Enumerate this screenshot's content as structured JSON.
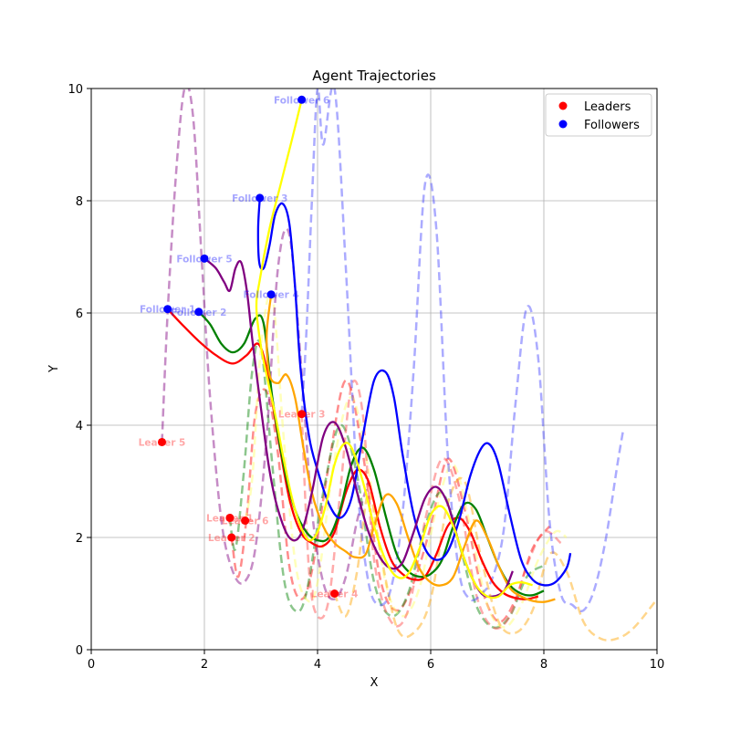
{
  "chart_data": {
    "type": "line",
    "title": "Agent Trajectories",
    "xlabel": "X",
    "ylabel": "Y",
    "xlim": [
      0,
      10
    ],
    "ylim": [
      0,
      10
    ],
    "xticks": [
      0,
      2,
      4,
      6,
      8,
      10
    ],
    "yticks": [
      0,
      2,
      4,
      6,
      8,
      10
    ],
    "grid": true,
    "legend": {
      "placement": "top-right",
      "entries": [
        {
          "label": "Leaders",
          "color": "#ff0000"
        },
        {
          "label": "Followers",
          "color": "#0000ff"
        }
      ]
    },
    "leaders": [
      {
        "label": "Leader 5",
        "x": 1.25,
        "y": 3.7
      },
      {
        "label": "Leader 2",
        "x": 2.48,
        "y": 2.0
      },
      {
        "label": "Leader 1",
        "x": 2.45,
        "y": 2.35
      },
      {
        "label": "Leader 6",
        "x": 2.72,
        "y": 2.3
      },
      {
        "label": "Leader 3",
        "x": 3.72,
        "y": 4.2
      },
      {
        "label": "Leader 4",
        "x": 4.3,
        "y": 1.0
      }
    ],
    "followers": [
      {
        "label": "Follower 1",
        "x": 1.35,
        "y": 6.07
      },
      {
        "label": "Follower 2",
        "x": 1.9,
        "y": 6.02
      },
      {
        "label": "Follower 5",
        "x": 2.0,
        "y": 6.97
      },
      {
        "label": "Follower 3",
        "x": 2.98,
        "y": 8.05
      },
      {
        "label": "Follower 4",
        "x": 3.18,
        "y": 6.33
      },
      {
        "label": "Follower 6",
        "x": 3.72,
        "y": 9.8
      }
    ],
    "leader_paths": [
      {
        "color": "#ff0000",
        "x": [
          2.48,
          2.6,
          2.75,
          2.9,
          3.1,
          3.3,
          3.5,
          3.7,
          3.9,
          4.2,
          4.5,
          4.8,
          5.1,
          5.4,
          5.7,
          6.0,
          6.3,
          6.6,
          6.9,
          7.2,
          7.5,
          7.8,
          8.1
        ],
        "y": [
          2.0,
          1.3,
          2.4,
          4.2,
          4.6,
          3.5,
          1.5,
          0.9,
          1.4,
          3.3,
          4.8,
          3.5,
          1.3,
          0.7,
          1.2,
          2.2,
          3.4,
          2.5,
          1.1,
          0.5,
          0.9,
          1.8,
          2.2
        ]
      },
      {
        "color": "#008000",
        "x": [
          2.45,
          2.55,
          2.7,
          2.85,
          3.0,
          3.2,
          3.4,
          3.6,
          3.8,
          4.1,
          4.4,
          4.7,
          5.0,
          5.3,
          5.6,
          5.9,
          6.2,
          6.5,
          6.8,
          7.1,
          7.4,
          7.7,
          8.0
        ],
        "y": [
          2.35,
          1.8,
          3.2,
          5.0,
          5.4,
          3.3,
          1.3,
          0.7,
          1.0,
          2.8,
          4.0,
          3.1,
          1.2,
          0.6,
          1.0,
          2.2,
          2.8,
          1.9,
          0.8,
          0.4,
          0.6,
          1.3,
          1.5
        ]
      },
      {
        "color": "#ffff66",
        "x": [
          2.72,
          2.85,
          3.0,
          3.2,
          3.4,
          3.6,
          3.8,
          4.0,
          4.3,
          4.6,
          4.9,
          5.2,
          5.5,
          5.8,
          6.1,
          6.4,
          6.7,
          7.0,
          7.3,
          7.6,
          7.9,
          8.2,
          8.4
        ],
        "y": [
          2.3,
          3.1,
          5.4,
          6.3,
          3.8,
          1.6,
          0.9,
          1.2,
          3.4,
          4.5,
          3.2,
          1.2,
          0.6,
          1.1,
          2.5,
          3.3,
          2.2,
          0.8,
          0.4,
          0.8,
          1.6,
          2.1,
          2.0
        ]
      },
      {
        "color": "#ff4444",
        "x": [
          3.72,
          3.85,
          4.0,
          4.2,
          4.4,
          4.6,
          4.8,
          5.0,
          5.3,
          5.6,
          5.9,
          6.2,
          6.5,
          6.8,
          7.1,
          7.4,
          7.7,
          8.0,
          8.3
        ],
        "y": [
          4.2,
          1.4,
          0.6,
          0.9,
          2.8,
          4.7,
          4.2,
          1.6,
          0.5,
          0.7,
          2.3,
          3.4,
          2.7,
          1.0,
          0.4,
          0.6,
          1.5,
          2.1,
          1.9
        ]
      },
      {
        "color": "#ffa500",
        "x": [
          4.3,
          4.5,
          4.7,
          4.9,
          5.1,
          5.4,
          5.7,
          6.0,
          6.3,
          6.6,
          6.9,
          7.2,
          7.5,
          7.8,
          8.1,
          8.4,
          8.7,
          9.0,
          9.3,
          9.6,
          10.0
        ],
        "y": [
          1.0,
          0.6,
          1.4,
          2.8,
          1.8,
          0.4,
          0.3,
          0.9,
          2.6,
          3.0,
          1.6,
          0.5,
          0.3,
          0.7,
          1.7,
          1.4,
          0.5,
          0.2,
          0.2,
          0.4,
          0.9
        ]
      },
      {
        "color": "#800080",
        "x": [
          1.25,
          1.35,
          1.5,
          1.65,
          1.8,
          1.95,
          2.1,
          2.3,
          2.5,
          2.7,
          2.9,
          3.1,
          3.3,
          3.5,
          3.7,
          3.9,
          4.1,
          4.3,
          4.5,
          4.7,
          4.9
        ],
        "y": [
          3.7,
          6.0,
          8.5,
          10.0,
          9.5,
          7.0,
          4.5,
          2.3,
          1.4,
          1.2,
          1.8,
          3.8,
          6.8,
          7.4,
          5.2,
          2.5,
          1.2,
          0.9,
          1.3,
          2.3,
          3.0
        ]
      },
      {
        "color": "#4444ff",
        "x": [
          3.72,
          3.8,
          3.9,
          4.0,
          4.1,
          4.3,
          4.5,
          4.7,
          4.9,
          5.1,
          5.3,
          5.5,
          5.7,
          5.9,
          6.1,
          6.3,
          6.5,
          6.7,
          6.9,
          7.1,
          7.3,
          7.5,
          7.7,
          7.9,
          8.1,
          8.3,
          8.5,
          8.7,
          8.9,
          9.1,
          9.3,
          9.4
        ],
        "y": [
          4.2,
          5.6,
          8.0,
          10.0,
          9.0,
          10.0,
          6.8,
          3.0,
          1.2,
          0.8,
          1.1,
          2.4,
          5.0,
          8.3,
          7.5,
          3.5,
          1.4,
          0.9,
          1.0,
          1.3,
          2.2,
          4.4,
          6.1,
          5.2,
          2.3,
          1.0,
          0.8,
          0.7,
          1.1,
          2.0,
          3.3,
          3.9
        ]
      }
    ],
    "follower_paths": [
      {
        "color": "#ff0000",
        "x": [
          1.35,
          1.6,
          1.9,
          2.2,
          2.5,
          2.75,
          2.95,
          3.1,
          3.3,
          3.5,
          3.7,
          3.9,
          4.1,
          4.3,
          4.5,
          4.7,
          4.9,
          5.1,
          5.3,
          5.5,
          5.7,
          5.9,
          6.1,
          6.3,
          6.5,
          6.7,
          6.9,
          7.1,
          7.3,
          7.5,
          7.7,
          7.9
        ],
        "y": [
          6.07,
          5.8,
          5.5,
          5.25,
          5.1,
          5.25,
          5.45,
          5.0,
          3.8,
          2.7,
          2.1,
          1.9,
          1.85,
          2.1,
          2.8,
          3.2,
          3.0,
          2.2,
          1.6,
          1.35,
          1.25,
          1.3,
          1.7,
          2.2,
          2.35,
          2.1,
          1.6,
          1.2,
          1.0,
          0.92,
          0.9,
          0.95
        ]
      },
      {
        "color": "#008000",
        "x": [
          1.9,
          2.1,
          2.3,
          2.5,
          2.7,
          2.9,
          3.05,
          3.2,
          3.4,
          3.6,
          3.8,
          4.0,
          4.2,
          4.4,
          4.6,
          4.8,
          5.0,
          5.2,
          5.4,
          5.6,
          5.8,
          6.0,
          6.2,
          6.4,
          6.6,
          6.8,
          7.0,
          7.2,
          7.4,
          7.6,
          7.8,
          8.0
        ],
        "y": [
          6.02,
          5.8,
          5.45,
          5.3,
          5.45,
          5.9,
          5.8,
          4.5,
          3.3,
          2.5,
          2.1,
          1.95,
          2.0,
          2.5,
          3.3,
          3.6,
          3.2,
          2.4,
          1.7,
          1.4,
          1.3,
          1.35,
          1.6,
          2.2,
          2.6,
          2.5,
          2.0,
          1.5,
          1.15,
          1.0,
          0.97,
          1.05
        ]
      },
      {
        "color": "#0000ff",
        "x": [
          2.98,
          2.95,
          2.97,
          3.05,
          3.15,
          3.25,
          3.38,
          3.5,
          3.6,
          3.7,
          3.85,
          4.0,
          4.2,
          4.4,
          4.6,
          4.8,
          5.0,
          5.2,
          5.35,
          5.5,
          5.7,
          5.9,
          6.1,
          6.3,
          6.5,
          6.7,
          6.9,
          7.05,
          7.2,
          7.4,
          7.6,
          7.8,
          8.0,
          8.2,
          8.4,
          8.47
        ],
        "y": [
          8.05,
          7.5,
          6.9,
          6.8,
          7.2,
          7.75,
          7.95,
          7.6,
          6.5,
          5.0,
          3.8,
          3.2,
          2.6,
          2.35,
          2.7,
          3.8,
          4.8,
          4.95,
          4.5,
          3.5,
          2.4,
          1.8,
          1.6,
          1.75,
          2.3,
          3.1,
          3.6,
          3.65,
          3.3,
          2.4,
          1.6,
          1.25,
          1.15,
          1.2,
          1.45,
          1.72
        ]
      },
      {
        "color": "#ffa500",
        "x": [
          3.18,
          3.1,
          3.15,
          3.3,
          3.45,
          3.6,
          3.75,
          3.9,
          4.1,
          4.3,
          4.5,
          4.65,
          4.85,
          5.0,
          5.2,
          5.4,
          5.6,
          5.8,
          6.0,
          6.2,
          6.4,
          6.6,
          6.8,
          7.0,
          7.2,
          7.4,
          7.6,
          7.8,
          8.0,
          8.2
        ],
        "y": [
          6.33,
          5.6,
          4.9,
          4.75,
          4.9,
          4.5,
          3.6,
          2.8,
          2.2,
          1.9,
          1.75,
          1.65,
          1.7,
          2.2,
          2.75,
          2.6,
          2.0,
          1.45,
          1.2,
          1.15,
          1.3,
          1.85,
          2.3,
          2.0,
          1.5,
          1.1,
          0.95,
          0.87,
          0.85,
          0.9
        ]
      },
      {
        "color": "#800080",
        "x": [
          2.0,
          2.2,
          2.35,
          2.45,
          2.55,
          2.65,
          2.75,
          2.85,
          3.0,
          3.15,
          3.3,
          3.5,
          3.7,
          3.9,
          4.1,
          4.3,
          4.5,
          4.7,
          4.9,
          5.1,
          5.3,
          5.5,
          5.7,
          5.9,
          6.1,
          6.3,
          6.5,
          6.7,
          6.9,
          7.1,
          7.3,
          7.45
        ],
        "y": [
          6.97,
          6.8,
          6.55,
          6.4,
          6.8,
          6.9,
          6.4,
          5.5,
          4.3,
          3.2,
          2.5,
          2.0,
          2.05,
          2.8,
          3.8,
          4.05,
          3.6,
          2.8,
          2.1,
          1.65,
          1.45,
          1.55,
          2.1,
          2.7,
          2.9,
          2.6,
          1.9,
          1.35,
          1.0,
          0.95,
          1.05,
          1.4
        ]
      },
      {
        "color": "#ffff00",
        "x": [
          3.72,
          3.55,
          3.35,
          3.15,
          2.98,
          2.92,
          3.0,
          3.12,
          3.25,
          3.4,
          3.55,
          3.7,
          3.85,
          4.0,
          4.15,
          4.3,
          4.45,
          4.6,
          4.8,
          5.0,
          5.2,
          5.4,
          5.6,
          5.8,
          6.0,
          6.2,
          6.4,
          6.6,
          6.8,
          7.0,
          7.2,
          7.4,
          7.6,
          7.8
        ],
        "y": [
          9.8,
          9.1,
          8.3,
          7.5,
          6.6,
          6.1,
          5.4,
          4.8,
          4.2,
          3.4,
          2.7,
          2.2,
          1.95,
          2.1,
          2.6,
          3.3,
          3.65,
          3.6,
          3.0,
          2.2,
          1.6,
          1.3,
          1.35,
          1.8,
          2.4,
          2.55,
          2.2,
          1.6,
          1.15,
          0.95,
          0.95,
          1.15,
          1.2,
          1.15
        ]
      }
    ]
  }
}
